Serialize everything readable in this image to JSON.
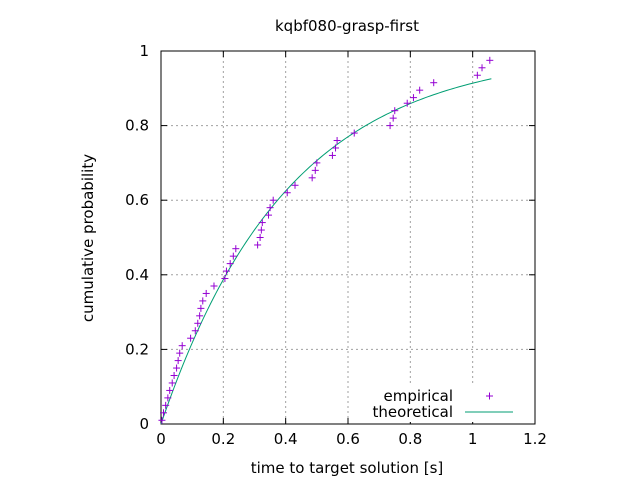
{
  "chart_data": {
    "type": "scatter",
    "title": "kqbf080-grasp-first",
    "xlabel": "time to target solution [s]",
    "ylabel": "cumulative probability",
    "xlim": [
      0,
      1.2
    ],
    "ylim": [
      0,
      1
    ],
    "xticks": [
      "0",
      "0.2",
      "0.4",
      "0.6",
      "0.8",
      "1",
      "1.2"
    ],
    "yticks": [
      "0",
      "0.2",
      "0.4",
      "0.6",
      "0.8",
      "1"
    ],
    "grid": true,
    "legend_position": "bottom-right",
    "series": [
      {
        "name": "empirical",
        "kind": "points",
        "marker": "+",
        "color": "#9400d3",
        "points": [
          [
            0.003,
            0.01
          ],
          [
            0.008,
            0.03
          ],
          [
            0.015,
            0.05
          ],
          [
            0.022,
            0.07
          ],
          [
            0.028,
            0.09
          ],
          [
            0.036,
            0.11
          ],
          [
            0.042,
            0.13
          ],
          [
            0.05,
            0.15
          ],
          [
            0.055,
            0.17
          ],
          [
            0.06,
            0.19
          ],
          [
            0.068,
            0.21
          ],
          [
            0.095,
            0.23
          ],
          [
            0.11,
            0.25
          ],
          [
            0.118,
            0.27
          ],
          [
            0.124,
            0.29
          ],
          [
            0.128,
            0.31
          ],
          [
            0.134,
            0.33
          ],
          [
            0.145,
            0.35
          ],
          [
            0.17,
            0.37
          ],
          [
            0.205,
            0.39
          ],
          [
            0.21,
            0.41
          ],
          [
            0.222,
            0.43
          ],
          [
            0.232,
            0.45
          ],
          [
            0.24,
            0.47
          ],
          [
            0.31,
            0.48
          ],
          [
            0.318,
            0.5
          ],
          [
            0.322,
            0.52
          ],
          [
            0.325,
            0.54
          ],
          [
            0.345,
            0.56
          ],
          [
            0.35,
            0.58
          ],
          [
            0.36,
            0.6
          ],
          [
            0.405,
            0.62
          ],
          [
            0.43,
            0.64
          ],
          [
            0.485,
            0.66
          ],
          [
            0.495,
            0.68
          ],
          [
            0.5,
            0.7
          ],
          [
            0.55,
            0.72
          ],
          [
            0.56,
            0.74
          ],
          [
            0.565,
            0.76
          ],
          [
            0.62,
            0.78
          ],
          [
            0.735,
            0.8
          ],
          [
            0.745,
            0.82
          ],
          [
            0.75,
            0.84
          ],
          [
            0.79,
            0.86
          ],
          [
            0.81,
            0.875
          ],
          [
            0.83,
            0.895
          ],
          [
            0.875,
            0.915
          ],
          [
            1.015,
            0.935
          ],
          [
            1.03,
            0.955
          ],
          [
            1.055,
            0.975
          ]
        ]
      },
      {
        "name": "theoretical",
        "kind": "line",
        "color": "#009e73",
        "model": "exponential",
        "x_range": [
          0,
          1.06
        ],
        "rate": 2.45
      }
    ]
  }
}
